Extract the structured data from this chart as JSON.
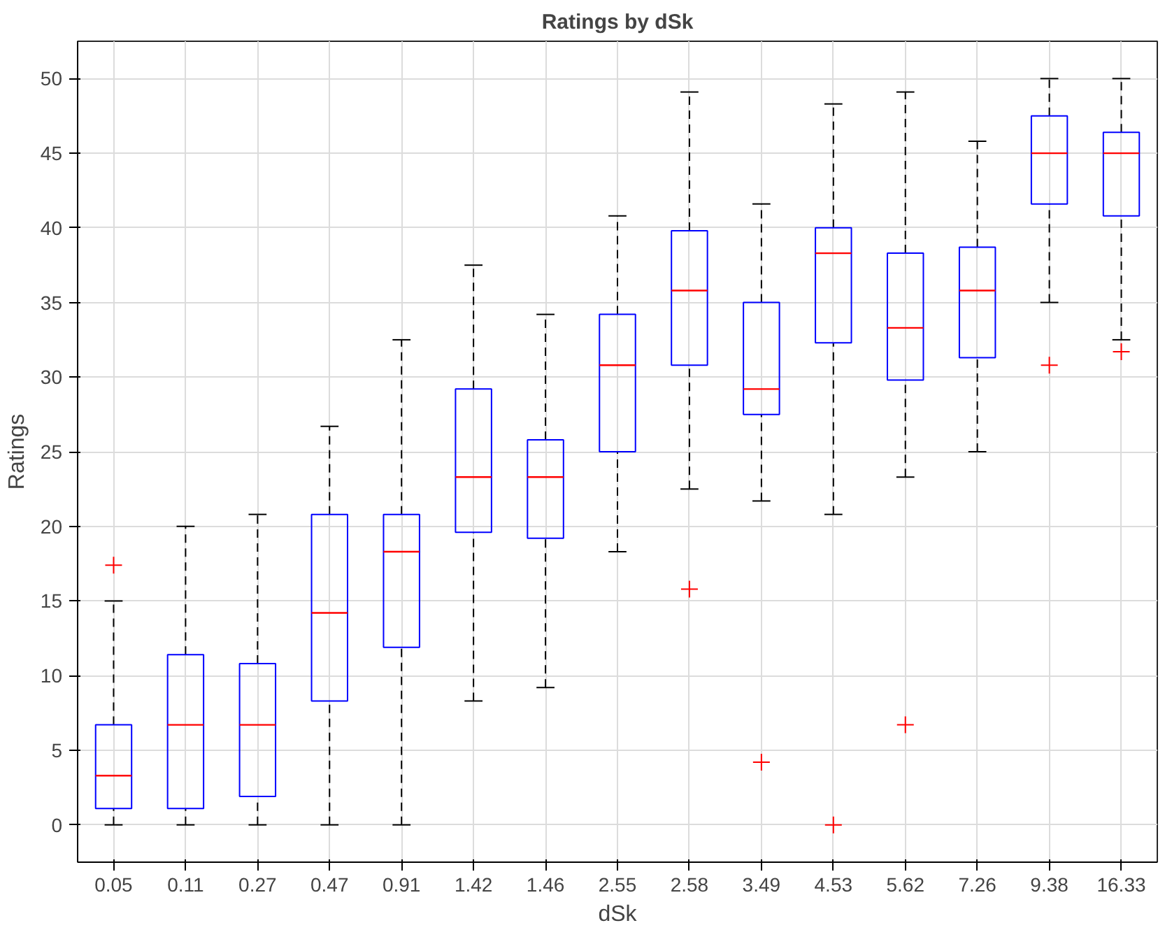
{
  "chart_data": {
    "type": "box",
    "title": "Ratings by dSk",
    "xlabel": "dSk",
    "ylabel": "Ratings",
    "categories": [
      "0.05",
      "0.11",
      "0.27",
      "0.47",
      "0.91",
      "1.42",
      "1.46",
      "2.55",
      "2.58",
      "3.49",
      "4.53",
      "5.62",
      "7.26",
      "9.38",
      "16.33"
    ],
    "boxes": [
      {
        "low": 0,
        "q1": 1.1,
        "median": 3.3,
        "q3": 6.7,
        "high": 15.0,
        "outliers": [
          17.4
        ]
      },
      {
        "low": 0,
        "q1": 1.1,
        "median": 6.7,
        "q3": 11.4,
        "high": 20.0
      },
      {
        "low": 0,
        "q1": 1.9,
        "median": 6.7,
        "q3": 10.8,
        "high": 20.8
      },
      {
        "low": 0,
        "q1": 8.3,
        "median": 14.2,
        "q3": 20.8,
        "high": 26.7
      },
      {
        "low": 0,
        "q1": 11.9,
        "median": 18.3,
        "q3": 20.8,
        "high": 32.5
      },
      {
        "low": 8.3,
        "q1": 19.6,
        "median": 23.3,
        "q3": 29.2,
        "high": 37.5
      },
      {
        "low": 9.2,
        "q1": 19.2,
        "median": 23.3,
        "q3": 25.8,
        "high": 34.2
      },
      {
        "low": 18.3,
        "q1": 25.0,
        "median": 30.8,
        "q3": 34.2,
        "high": 40.8
      },
      {
        "low": 22.5,
        "q1": 30.8,
        "median": 35.8,
        "q3": 39.8,
        "high": 49.1,
        "outliers": [
          15.8
        ]
      },
      {
        "low": 21.7,
        "q1": 27.5,
        "median": 29.2,
        "q3": 35.0,
        "high": 41.6,
        "outliers": [
          4.2
        ]
      },
      {
        "low": 20.8,
        "q1": 32.3,
        "median": 38.3,
        "q3": 40.0,
        "high": 48.3,
        "outliers": [
          0
        ]
      },
      {
        "low": 23.3,
        "q1": 29.8,
        "median": 33.3,
        "q3": 38.3,
        "high": 49.1,
        "outliers": [
          6.7
        ]
      },
      {
        "low": 25.0,
        "q1": 31.3,
        "median": 35.8,
        "q3": 38.7,
        "high": 45.8
      },
      {
        "low": 35.0,
        "q1": 41.6,
        "median": 45.0,
        "q3": 47.5,
        "high": 50,
        "outliers": [
          30.8
        ]
      },
      {
        "low": 32.5,
        "q1": 40.8,
        "median": 45.0,
        "q3": 46.4,
        "high": 50,
        "outliers": [
          31.7
        ]
      }
    ],
    "ylim": [
      -2.5,
      52.5
    ],
    "yticks": [
      0,
      5,
      10,
      15,
      20,
      25,
      30,
      35,
      40,
      45,
      50
    ],
    "grid": true,
    "marker": "cross"
  }
}
